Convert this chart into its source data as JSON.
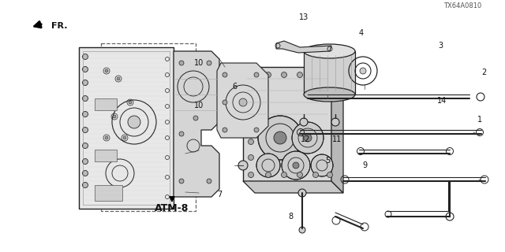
{
  "bg_color": "#ffffff",
  "title_code": "TX64A0810",
  "atm_label": "ATM-8",
  "fr_label": "FR.",
  "line_color": "#222222",
  "gray_fill": "#cccccc",
  "light_gray": "#e0e0e0",
  "mid_gray": "#aaaaaa"
}
